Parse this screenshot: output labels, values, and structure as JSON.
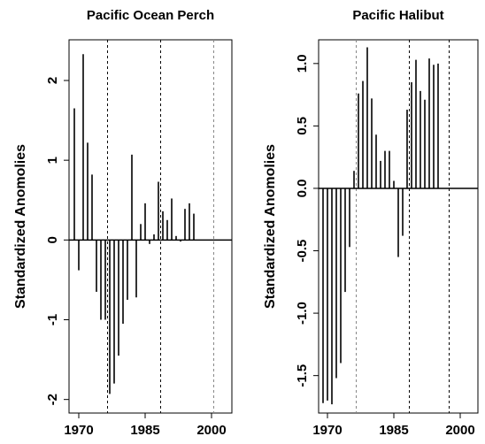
{
  "chart_data": [
    {
      "type": "bar",
      "title": "Pacific Ocean Perch",
      "y_label": "Standardized Anomolies",
      "x": [
        1969,
        1970,
        1971,
        1972,
        1973,
        1974,
        1975,
        1976,
        1977,
        1978,
        1979,
        1980,
        1981,
        1982,
        1983,
        1984,
        1985,
        1986,
        1987,
        1988,
        1989,
        1990,
        1991,
        1992,
        1993,
        1994,
        1995,
        1996
      ],
      "values": [
        1.65,
        -0.38,
        2.33,
        1.22,
        0.82,
        -0.65,
        -1.0,
        -1.0,
        -1.93,
        -1.8,
        -1.45,
        -1.05,
        -0.75,
        1.07,
        -0.72,
        0.2,
        0.46,
        -0.05,
        0.07,
        0.73,
        0.36,
        0.25,
        0.52,
        0.05,
        -0.02,
        0.39,
        0.46,
        0.33
      ],
      "color": "#000000",
      "xlim": [
        1967.8,
        2004.6
      ],
      "xticks": [
        1970,
        1985,
        2000
      ],
      "ylim": [
        -2.17,
        2.51
      ],
      "yticks": [
        -2,
        -1,
        0,
        1,
        2
      ],
      "vlines": [
        1976.5,
        1988.5,
        2000.5
      ],
      "vline_colors": [
        "#000000",
        "#000000",
        "#888888"
      ]
    },
    {
      "type": "bar",
      "title": "Pacific Halibut",
      "y_label": "Standardized Anomolies",
      "x": [
        1969,
        1970,
        1971,
        1972,
        1973,
        1974,
        1975,
        1976,
        1977,
        1978,
        1979,
        1980,
        1981,
        1982,
        1983,
        1984,
        1985,
        1986,
        1987,
        1988,
        1989,
        1990,
        1991,
        1992,
        1993,
        1994,
        1995
      ],
      "values": [
        -1.72,
        -1.7,
        -1.73,
        -1.52,
        -1.4,
        -0.83,
        -0.47,
        0.14,
        0.76,
        0.86,
        1.13,
        0.72,
        0.43,
        0.22,
        0.3,
        0.3,
        0.06,
        -0.55,
        -0.38,
        0.63,
        0.85,
        1.03,
        0.78,
        0.71,
        1.04,
        0.99,
        1.0
      ],
      "color": "#000000",
      "xlim": [
        1968,
        2004
      ],
      "xticks": [
        1970,
        1985,
        2000
      ],
      "ylim": [
        -1.8,
        1.19
      ],
      "yticks": [
        {
          "value": -1.5,
          "label": "-1.5"
        },
        {
          "value": -1,
          "label": "-1.0"
        },
        -0.5,
        {
          "value": 0,
          "label": "0.0"
        },
        0.5,
        {
          "value": 1,
          "label": "1.0"
        }
      ],
      "vlines": [
        1976.5,
        1988.5,
        1997.5
      ],
      "vline_colors": [
        "#888888",
        "#000000",
        "#000000"
      ]
    }
  ]
}
